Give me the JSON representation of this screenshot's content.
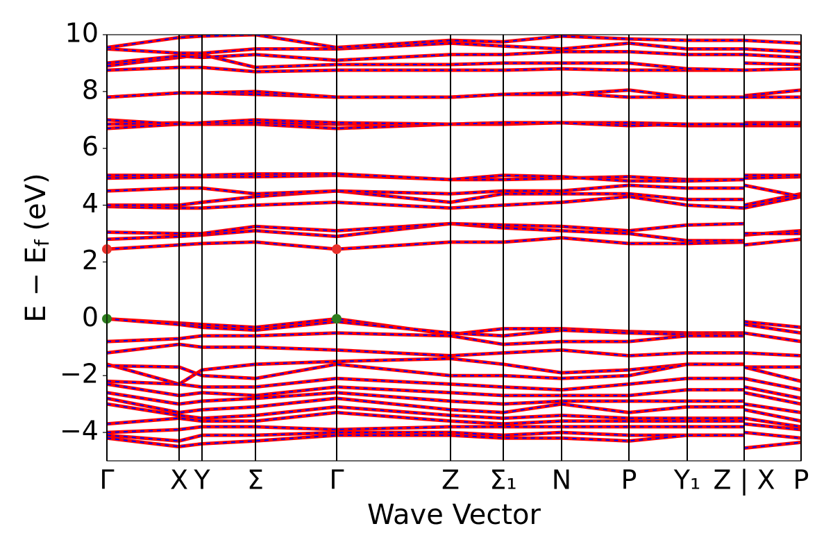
{
  "chart_data": {
    "type": "band_structure",
    "x_label": "Wave Vector",
    "y_label": [
      "E − E",
      "f",
      " (eV)"
    ],
    "xlim": [
      0,
      1
    ],
    "ylim": [
      -5,
      10
    ],
    "xticks": [
      {
        "value": 0,
        "label": "Γ"
      },
      {
        "value": 0.104,
        "label": "X"
      },
      {
        "value": 0.137,
        "label": "Y"
      },
      {
        "value": 0.214,
        "label": "Σ"
      },
      {
        "value": 0.331,
        "label": "Γ"
      },
      {
        "value": 0.495,
        "label": "Z"
      },
      {
        "value": 0.571,
        "label": "Σ₁"
      },
      {
        "value": 0.655,
        "label": "N"
      },
      {
        "value": 0.752,
        "label": "P"
      },
      {
        "value": 0.836,
        "label": "Y₁"
      },
      {
        "value": 0.918,
        "label": "Z | X"
      },
      {
        "value": 1,
        "label": "P"
      }
    ],
    "yticks": [
      {
        "value": -4,
        "label": "−4"
      },
      {
        "value": -2,
        "label": "−2"
      },
      0,
      2,
      4,
      6,
      8,
      10
    ],
    "line_color": "#ff0000",
    "dash_color": "#0000ff",
    "x": [
      0,
      0.104,
      0.137,
      0.214,
      0.331,
      0.495,
      0.571,
      0.655,
      0.752,
      0.836,
      0.918,
      0.918,
      0.918,
      1
    ],
    "series": [
      {
        "values": [
          2.45,
          2.6,
          2.65,
          2.7,
          2.45,
          2.7,
          2.7,
          2.85,
          2.65,
          2.65,
          2.7,
          null,
          2.6,
          2.8
        ]
      },
      {
        "values": [
          2.8,
          2.9,
          2.95,
          3.1,
          2.9,
          3.35,
          3.2,
          3.1,
          3.0,
          2.75,
          2.75,
          null,
          2.95,
          3.1
        ]
      },
      {
        "values": [
          3.05,
          3.0,
          3.0,
          3.25,
          3.1,
          3.35,
          3.3,
          3.25,
          3.1,
          3.3,
          3.35,
          null,
          3.0,
          3.0
        ]
      },
      {
        "values": [
          3.95,
          3.9,
          3.9,
          4.0,
          4.1,
          3.9,
          4.0,
          4.1,
          4.3,
          4.0,
          3.9,
          null,
          3.9,
          4.3
        ]
      },
      {
        "values": [
          4.0,
          4.0,
          4.1,
          4.3,
          4.5,
          4.1,
          4.4,
          4.4,
          4.4,
          4.2,
          4.2,
          null,
          4.0,
          4.4
        ]
      },
      {
        "values": [
          4.5,
          4.6,
          4.6,
          4.4,
          4.5,
          4.4,
          4.5,
          4.5,
          4.7,
          4.6,
          4.6,
          null,
          4.7,
          4.3
        ]
      },
      {
        "values": [
          4.95,
          5.0,
          5.0,
          5.0,
          5.05,
          4.9,
          4.9,
          4.95,
          5.0,
          4.9,
          4.9,
          null,
          4.95,
          5.0
        ]
      },
      {
        "values": [
          5.05,
          5.05,
          5.05,
          5.1,
          5.1,
          4.9,
          5.05,
          5.0,
          4.85,
          4.85,
          4.9,
          null,
          5.05,
          5.05
        ]
      },
      {
        "values": [
          6.7,
          6.85,
          6.85,
          6.85,
          6.7,
          6.85,
          6.85,
          6.9,
          6.85,
          6.8,
          6.8,
          null,
          6.8,
          6.8
        ]
      },
      {
        "values": [
          6.85,
          6.9,
          6.85,
          6.9,
          6.85,
          6.85,
          6.9,
          6.9,
          6.9,
          6.85,
          6.85,
          null,
          6.9,
          6.9
        ]
      },
      {
        "values": [
          7.0,
          6.85,
          6.9,
          7.0,
          6.9,
          6.85,
          6.9,
          6.9,
          6.8,
          6.85,
          6.85,
          null,
          6.85,
          6.85
        ]
      },
      {
        "values": [
          7.8,
          7.95,
          7.95,
          7.9,
          7.8,
          7.8,
          7.9,
          7.9,
          8.05,
          7.8,
          7.8,
          null,
          7.85,
          8.05
        ]
      },
      {
        "values": [
          7.8,
          7.95,
          7.95,
          8.0,
          7.8,
          7.8,
          7.9,
          7.95,
          7.8,
          7.8,
          7.8,
          null,
          7.8,
          7.8
        ]
      },
      {
        "values": [
          8.75,
          8.85,
          8.85,
          8.7,
          8.75,
          8.75,
          8.75,
          8.8,
          8.75,
          8.75,
          8.75,
          null,
          8.75,
          8.8
        ]
      },
      {
        "values": [
          8.9,
          9.2,
          9.3,
          8.85,
          8.95,
          8.95,
          9.0,
          9.0,
          9.0,
          8.8,
          8.75,
          null,
          9.0,
          8.95
        ]
      },
      {
        "values": [
          9.0,
          9.25,
          9.2,
          9.3,
          9.1,
          9.3,
          9.3,
          9.4,
          9.4,
          9.3,
          9.3,
          null,
          9.3,
          9.2
        ]
      },
      {
        "values": [
          9.5,
          9.35,
          9.35,
          9.5,
          9.5,
          9.7,
          9.6,
          9.5,
          9.7,
          9.5,
          9.5,
          null,
          9.5,
          9.4
        ]
      },
      {
        "values": [
          9.55,
          9.9,
          9.95,
          10,
          9.55,
          9.8,
          9.75,
          9.95,
          9.85,
          9.8,
          9.8,
          null,
          9.8,
          9.7
        ]
      },
      {
        "values": [
          0,
          -0.15,
          -0.2,
          -0.3,
          0,
          -0.55,
          -0.35,
          -0.35,
          -0.45,
          -0.5,
          -0.5,
          null,
          -0.1,
          -0.3
        ]
      },
      {
        "values": [
          0,
          -0.2,
          -0.3,
          -0.4,
          -0.1,
          -0.5,
          -0.6,
          -0.4,
          -0.5,
          -0.55,
          -0.55,
          null,
          -0.2,
          -0.5
        ]
      },
      {
        "values": [
          -0.8,
          -0.7,
          -0.6,
          -0.6,
          -0.5,
          -0.6,
          -0.9,
          -0.8,
          -0.8,
          -0.6,
          -0.6,
          null,
          -0.5,
          -0.8
        ]
      },
      {
        "values": [
          -1.2,
          -0.9,
          -1.0,
          -1.0,
          -1.1,
          -1.3,
          -1.2,
          -1.1,
          -1.3,
          -1.2,
          -1.2,
          null,
          -1.2,
          -1.3
        ]
      },
      {
        "values": [
          -1.6,
          -2.3,
          -1.8,
          -1.6,
          -1.5,
          -1.4,
          -1.6,
          -1.9,
          -1.8,
          -1.6,
          -1.6,
          null,
          -1.7,
          -1.7
        ]
      },
      {
        "values": [
          -1.65,
          -1.7,
          -2.0,
          -2.1,
          -1.6,
          -2.0,
          -2.0,
          -2.1,
          -2.0,
          -1.6,
          -1.6,
          null,
          -1.7,
          -2.2
        ]
      },
      {
        "values": [
          -2.2,
          -2.3,
          -2.4,
          -2.4,
          -2.1,
          -2.3,
          -2.4,
          -2.5,
          -2.3,
          -2.1,
          -2.1,
          null,
          -2.1,
          -2.5
        ]
      },
      {
        "values": [
          -2.3,
          -2.7,
          -2.6,
          -2.7,
          -2.4,
          -2.6,
          -2.7,
          -2.7,
          -2.7,
          -2.5,
          -2.5,
          null,
          -2.4,
          -2.8
        ]
      },
      {
        "values": [
          -2.6,
          -3.0,
          -2.9,
          -2.8,
          -2.6,
          -2.9,
          -3.0,
          -2.9,
          -2.9,
          -2.9,
          -2.9,
          null,
          -2.6,
          -3.0
        ]
      },
      {
        "values": [
          -2.8,
          -3.3,
          -3.2,
          -3.1,
          -2.8,
          -3.2,
          -3.3,
          -3.0,
          -3.3,
          -3.1,
          -3.1,
          null,
          -3.0,
          -3.3
        ]
      },
      {
        "values": [
          -3.0,
          -3.4,
          -3.5,
          -3.4,
          -3.1,
          -3.4,
          -3.5,
          -3.4,
          -3.5,
          -3.5,
          -3.5,
          null,
          -3.2,
          -3.6
        ]
      },
      {
        "values": [
          -3.7,
          -3.5,
          -3.6,
          -3.6,
          -3.3,
          -3.6,
          -3.7,
          -3.6,
          -3.6,
          -3.6,
          -3.6,
          null,
          -3.5,
          -3.8
        ]
      },
      {
        "values": [
          -4.0,
          -3.9,
          -3.8,
          -3.8,
          -3.9,
          -3.8,
          -3.8,
          -3.8,
          -3.8,
          -3.8,
          -3.8,
          null,
          -3.7,
          -3.9
        ]
      },
      {
        "values": [
          -4.1,
          -4.3,
          -4.1,
          -4.1,
          -4.0,
          -4.0,
          -4.1,
          -4.0,
          -4.1,
          -4.1,
          -4.1,
          null,
          -4.0,
          -4.2
        ]
      },
      {
        "values": [
          -4.2,
          -4.5,
          -4.4,
          -4.3,
          -4.1,
          -4.1,
          -4.2,
          -4.2,
          -4.3,
          -4.1,
          -4.1,
          null,
          -4.55,
          -4.35
        ]
      }
    ],
    "markers": [
      {
        "x": 0,
        "y": 2.45,
        "color": "#e8302a"
      },
      {
        "x": 0.331,
        "y": 2.45,
        "color": "#e8302a"
      },
      {
        "x": 0,
        "y": 0,
        "color": "#2e7d1e"
      },
      {
        "x": 0.331,
        "y": 0,
        "color": "#2e7d1e"
      }
    ]
  }
}
